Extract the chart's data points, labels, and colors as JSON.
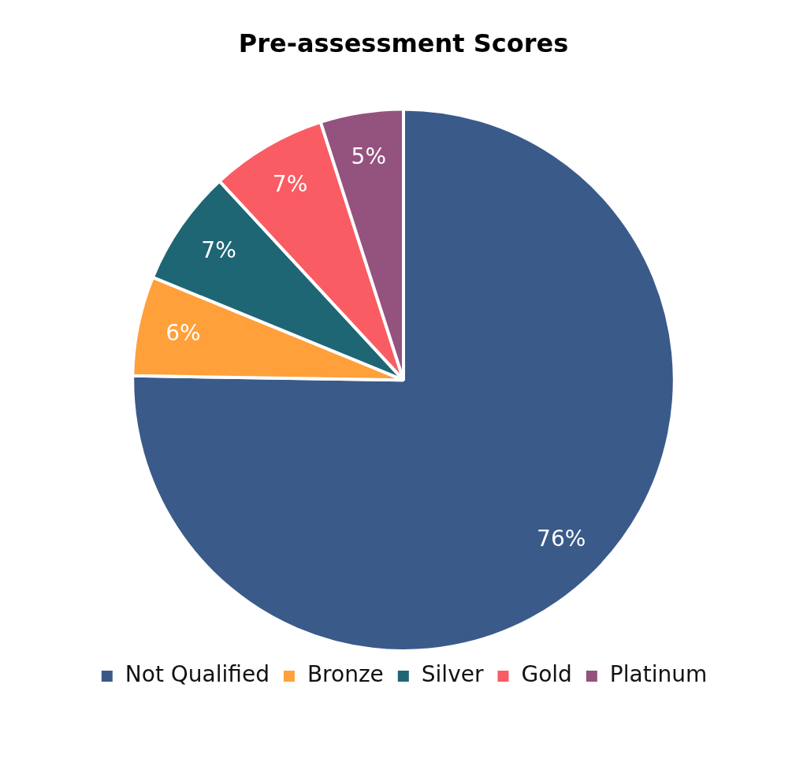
{
  "chart_data": {
    "type": "pie",
    "title": "Pre-assessment Scores",
    "categories": [
      "Not Qualified",
      "Bronze",
      "Silver",
      "Gold",
      "Platinum"
    ],
    "values": [
      76,
      6,
      7,
      7,
      5
    ],
    "value_labels": [
      "76%",
      "6%",
      "7%",
      "7%",
      "5%"
    ],
    "colors": [
      "#3a5a8a",
      "#ffa03a",
      "#1f6675",
      "#f95d63",
      "#94527e"
    ],
    "legend": "bottom"
  }
}
